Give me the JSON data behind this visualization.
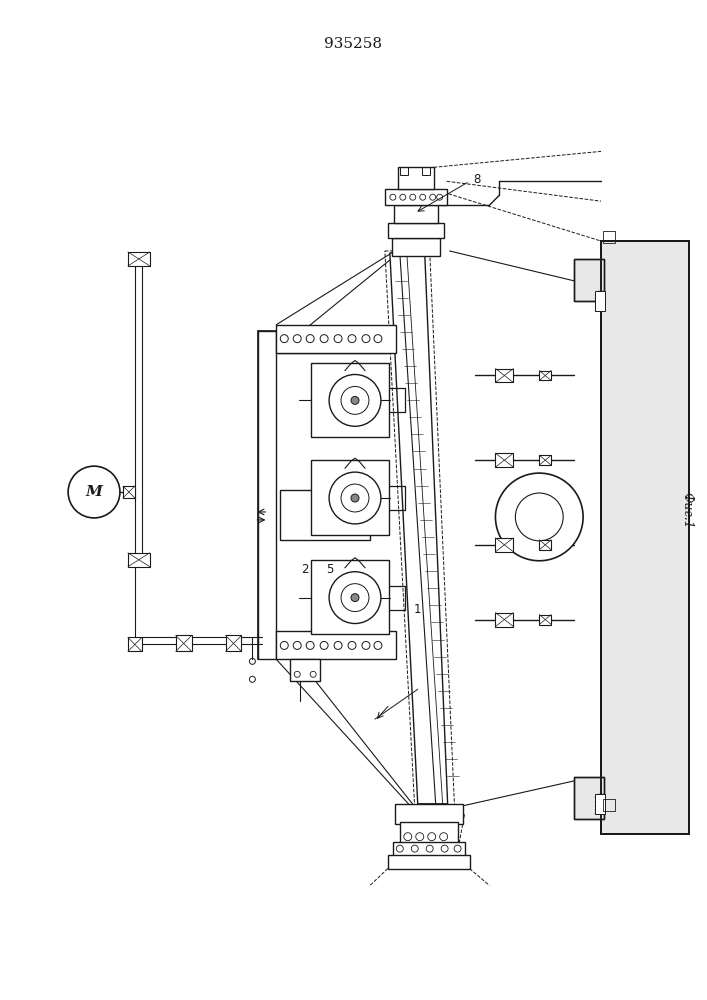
{
  "title": "935258",
  "fig_label": "Фиг.1",
  "bg_color": "#ffffff",
  "line_color": "#1a1a1a",
  "title_fontsize": 11,
  "label_fontsize": 8.5,
  "lw_main": 1.0,
  "lw_thin": 0.6,
  "lw_thick": 1.4
}
